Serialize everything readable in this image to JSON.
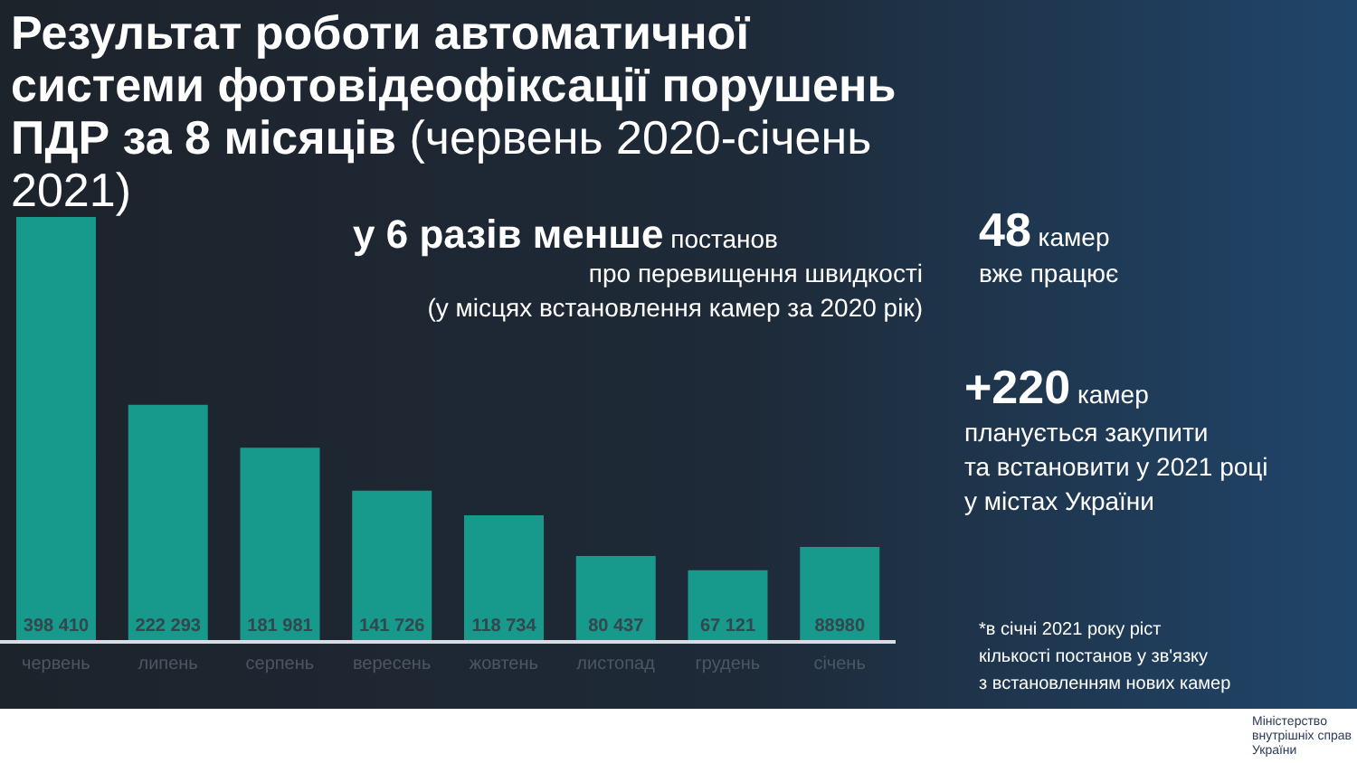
{
  "chart_data": {
    "type": "bar",
    "title": "Результат роботи автоматичної системи фотовідеофіксації порушень ПДР за 8 місяців",
    "subtitle": "(червень 2020-січень 2021)",
    "categories": [
      "червень",
      "липень",
      "серпень",
      "вересень",
      "жовтень",
      "листопад",
      "грудень",
      "січень"
    ],
    "values": [
      398410,
      222293,
      181981,
      141726,
      118734,
      80437,
      67121,
      88980
    ],
    "value_labels": [
      "398 410",
      "222 293",
      "181 981",
      "141 726",
      "118 734",
      "80 437",
      "67 121",
      "88980"
    ],
    "color": "#17998c",
    "annotations": [
      "у 6 разів менше",
      "постанов",
      "про перевищення швидкості",
      "(у місцях встановлення камер за 2020 рік)",
      "48",
      "камер",
      "вже працює",
      "+220",
      "камер",
      "планується закупити",
      "та встановити у 2021 році",
      "у містах України",
      "*в січні 2021 року ріст",
      "кількості постанов у зв'язку",
      "з встановленням нових камер",
      "Міністерство",
      "внутрішніх справ",
      "України"
    ]
  }
}
